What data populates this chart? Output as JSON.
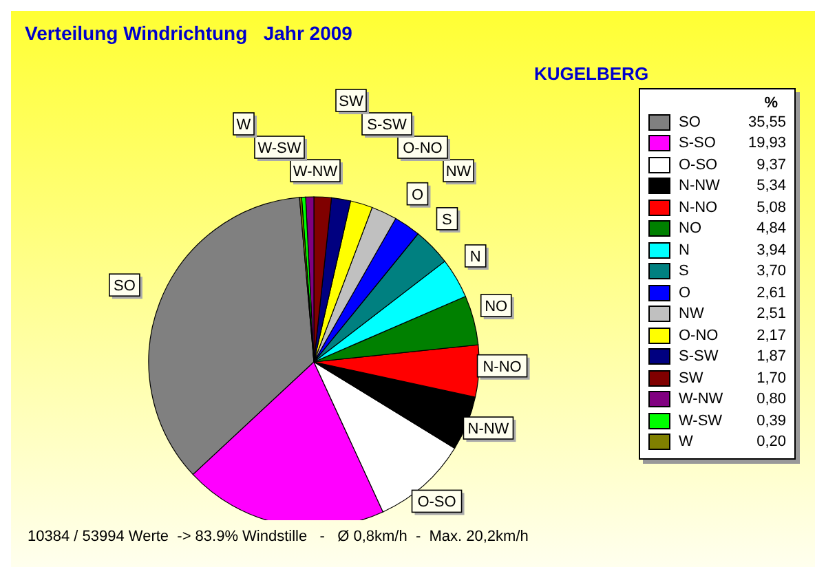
{
  "chart_data": {
    "type": "pie",
    "title": "Verteilung Windrichtung   Jahr 2009",
    "subtitle": "KUGELBERG",
    "categories": [
      "SO",
      "S-SO",
      "O-SO",
      "N-NW",
      "N-NO",
      "NO",
      "N",
      "S",
      "O",
      "NW",
      "O-NO",
      "S-SW",
      "SW",
      "W-NW",
      "W-SW",
      "W"
    ],
    "values": [
      35.55,
      19.93,
      9.37,
      5.34,
      5.08,
      4.84,
      3.94,
      3.7,
      2.61,
      2.51,
      2.17,
      1.87,
      1.7,
      0.8,
      0.39,
      0.2
    ],
    "value_labels": [
      "35,55",
      "19,93",
      "9,37",
      "5,34",
      "5,08",
      "4,84",
      "3,94",
      "3,70",
      "2,61",
      "2,51",
      "2,17",
      "1,87",
      "1,70",
      "0,80",
      "0,39",
      "0,20"
    ],
    "colors": [
      "#808080",
      "#ff00ff",
      "#ffffff",
      "#000000",
      "#ff0000",
      "#008000",
      "#00ffff",
      "#008080",
      "#0000ff",
      "#c0c0c0",
      "#ffff00",
      "#000080",
      "#800000",
      "#800080",
      "#00ff00",
      "#808000"
    ],
    "legend": "right",
    "legend_title": "%",
    "annotations": [
      "10384 / 53994 Werte  -> 83.9% Windstille   -   Ø 0,8km/h  -  Max. 20,2km/h"
    ]
  }
}
